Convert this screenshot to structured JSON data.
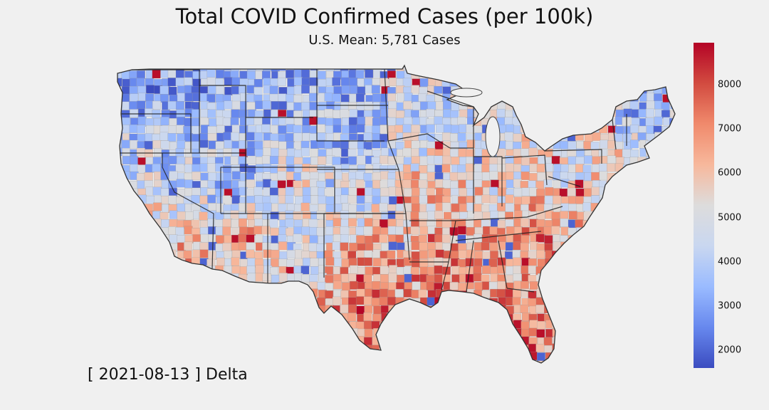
{
  "title": "Total COVID Confirmed Cases (per 100k)",
  "subtitle": "U.S. Mean: 5,781 Cases",
  "date_label": "[ 2021-08-13 ] Delta",
  "colorbar": {
    "colormap": "coolwarm",
    "min": 1600,
    "max": 8950,
    "ticks": [
      "2000",
      "3000",
      "4000",
      "5000",
      "6000",
      "7000",
      "8000"
    ],
    "stops": [
      "#3b4cc0",
      "#6788ee",
      "#9abbff",
      "#c9d7f0",
      "#dddcdc",
      "#f7b89c",
      "#f08a6c",
      "#d24b40",
      "#b40426"
    ]
  },
  "map": {
    "region": "Contiguous United States",
    "level": "county",
    "state_borders": true,
    "regional_tendency": [
      {
        "region": "Pacific Northwest",
        "level": "low"
      },
      {
        "region": "Northern Plains",
        "level": "low"
      },
      {
        "region": "Nevada / Utah",
        "level": "low"
      },
      {
        "region": "New Mexico",
        "level": "low"
      },
      {
        "region": "Upper Midwest",
        "level": "low"
      },
      {
        "region": "New England",
        "level": "low"
      },
      {
        "region": "Southern California",
        "level": "high"
      },
      {
        "region": "Arizona",
        "level": "high"
      },
      {
        "region": "Texas",
        "level": "high"
      },
      {
        "region": "Oklahoma / Arkansas",
        "level": "high"
      },
      {
        "region": "Louisiana / Mississippi",
        "level": "high"
      },
      {
        "region": "Tennessee / Kentucky",
        "level": "high"
      },
      {
        "region": "Georgia / South Carolina",
        "level": "high"
      },
      {
        "region": "Florida",
        "level": "high"
      }
    ]
  }
}
